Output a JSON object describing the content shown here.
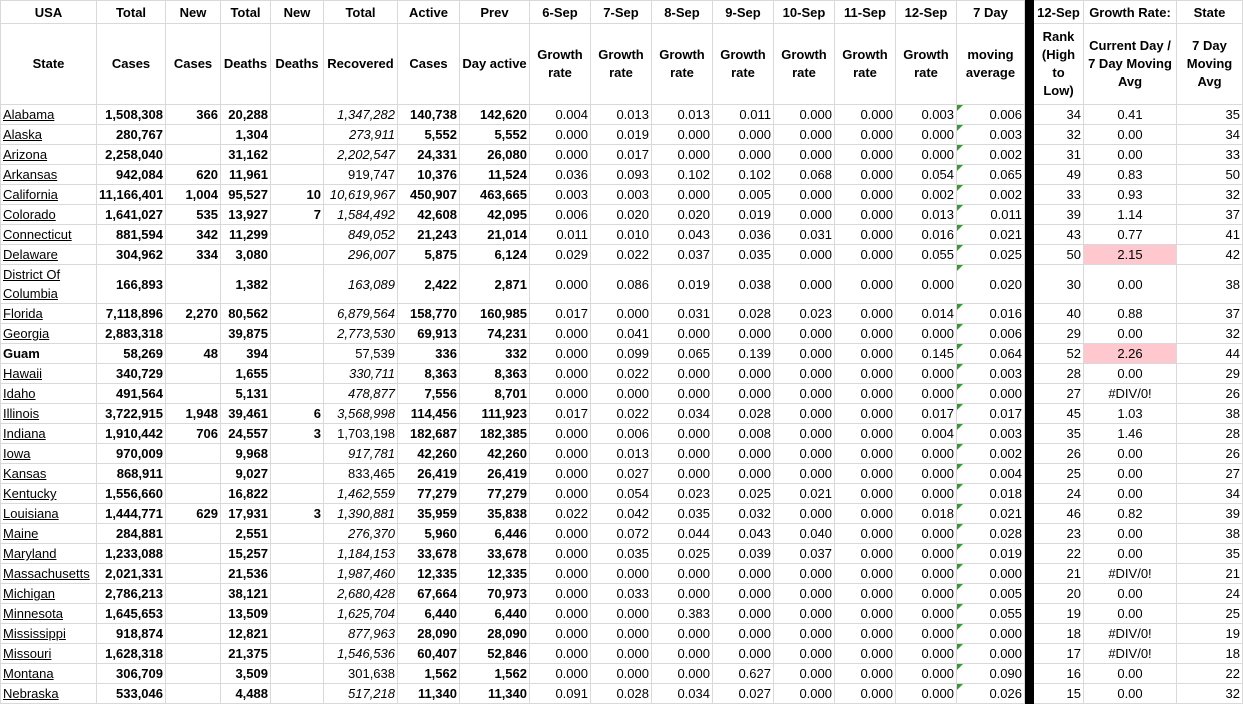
{
  "header": {
    "row1": [
      "USA",
      "Total",
      "New",
      "Total",
      "New",
      "Total",
      "Active",
      "Prev",
      "6-Sep",
      "7-Sep",
      "8-Sep",
      "9-Sep",
      "10-Sep",
      "11-Sep",
      "12-Sep",
      "7 Day",
      "12-Sep",
      "Growth Rate:",
      "State"
    ],
    "row2": [
      "State",
      "Cases",
      "Cases",
      "Deaths",
      "Deaths",
      "Recovered",
      "Cases",
      "Day active",
      "Growth rate",
      "Growth rate",
      "Growth rate",
      "Growth rate",
      "Growth rate",
      "Growth rate",
      "Growth rate",
      "moving average",
      "Rank (High to Low)",
      "Current Day / 7 Day Moving Avg",
      "7 Day Moving Avg"
    ]
  },
  "table": {
    "rows": [
      {
        "cells": [
          "Alabama",
          "1,508,308",
          "366",
          "20,288",
          null,
          "1,347,282",
          "140,738",
          "142,620",
          "0.004",
          "0.013",
          "0.013",
          "0.011",
          "0.000",
          "0.000",
          "0.003",
          "0.006",
          "34",
          "0.41",
          "35"
        ],
        "italic_recovered": true
      },
      {
        "cells": [
          "Alaska",
          "280,767",
          null,
          "1,304",
          null,
          "273,911",
          "5,552",
          "5,552",
          "0.000",
          "0.019",
          "0.000",
          "0.000",
          "0.000",
          "0.000",
          "0.000",
          "0.003",
          "32",
          "0.00",
          "34"
        ],
        "italic_recovered": true
      },
      {
        "cells": [
          "Arizona",
          "2,258,040",
          null,
          "31,162",
          null,
          "2,202,547",
          "24,331",
          "26,080",
          "0.000",
          "0.017",
          "0.000",
          "0.000",
          "0.000",
          "0.000",
          "0.000",
          "0.002",
          "31",
          "0.00",
          "33"
        ],
        "italic_recovered": true
      },
      {
        "cells": [
          "Arkansas",
          "942,084",
          "620",
          "11,961",
          null,
          "919,747",
          "10,376",
          "11,524",
          "0.036",
          "0.093",
          "0.102",
          "0.102",
          "0.068",
          "0.000",
          "0.054",
          "0.065",
          "49",
          "0.83",
          "50"
        ],
        "italic_recovered": false
      },
      {
        "cells": [
          "California",
          "11,166,401",
          "1,004",
          "95,527",
          "10",
          "10,619,967",
          "450,907",
          "463,665",
          "0.003",
          "0.003",
          "0.000",
          "0.005",
          "0.000",
          "0.000",
          "0.002",
          "0.002",
          "33",
          "0.93",
          "32"
        ],
        "italic_recovered": true
      },
      {
        "cells": [
          "Colorado",
          "1,641,027",
          "535",
          "13,927",
          "7",
          "1,584,492",
          "42,608",
          "42,095",
          "0.006",
          "0.020",
          "0.020",
          "0.019",
          "0.000",
          "0.000",
          "0.013",
          "0.011",
          "39",
          "1.14",
          "37"
        ],
        "italic_recovered": true
      },
      {
        "cells": [
          "Connecticut",
          "881,594",
          "342",
          "11,299",
          null,
          "849,052",
          "21,243",
          "21,014",
          "0.011",
          "0.010",
          "0.043",
          "0.036",
          "0.031",
          "0.000",
          "0.016",
          "0.021",
          "43",
          "0.77",
          "41"
        ],
        "italic_recovered": true
      },
      {
        "cells": [
          "Delaware",
          "304,962",
          "334",
          "3,080",
          null,
          "296,007",
          "5,875",
          "6,124",
          "0.029",
          "0.022",
          "0.037",
          "0.035",
          "0.000",
          "0.000",
          "0.055",
          "0.025",
          "50",
          "2.15",
          "42"
        ],
        "italic_recovered": true,
        "ratio_fill": "#ffc7ce"
      },
      {
        "cells": [
          "District Of Columbia",
          "166,893",
          null,
          "1,382",
          null,
          "163,089",
          "2,422",
          "2,871",
          "0.000",
          "0.086",
          "0.019",
          "0.038",
          "0.000",
          "0.000",
          "0.000",
          "0.020",
          "30",
          "0.00",
          "38"
        ],
        "italic_recovered": true
      },
      {
        "cells": [
          "Florida",
          "7,118,896",
          "2,270",
          "80,562",
          null,
          "6,879,564",
          "158,770",
          "160,985",
          "0.017",
          "0.000",
          "0.031",
          "0.028",
          "0.023",
          "0.000",
          "0.014",
          "0.016",
          "40",
          "0.88",
          "37"
        ],
        "italic_recovered": true
      },
      {
        "cells": [
          "Georgia",
          "2,883,318",
          null,
          "39,875",
          null,
          "2,773,530",
          "69,913",
          "74,231",
          "0.000",
          "0.041",
          "0.000",
          "0.000",
          "0.000",
          "0.000",
          "0.000",
          "0.006",
          "29",
          "0.00",
          "32"
        ],
        "italic_recovered": true
      },
      {
        "cells": [
          "Guam",
          "58,269",
          "48",
          "394",
          null,
          "57,539",
          "336",
          "332",
          "0.000",
          "0.099",
          "0.065",
          "0.139",
          "0.000",
          "0.000",
          "0.145",
          "0.064",
          "52",
          "2.26",
          "44"
        ],
        "italic_recovered": false,
        "bold_state": true,
        "ratio_fill": "#ffc7ce"
      },
      {
        "cells": [
          "Hawaii",
          "340,729",
          null,
          "1,655",
          null,
          "330,711",
          "8,363",
          "8,363",
          "0.000",
          "0.022",
          "0.000",
          "0.000",
          "0.000",
          "0.000",
          "0.000",
          "0.003",
          "28",
          "0.00",
          "29"
        ],
        "italic_recovered": true
      },
      {
        "cells": [
          "Idaho",
          "491,564",
          null,
          "5,131",
          null,
          "478,877",
          "7,556",
          "8,701",
          "0.000",
          "0.000",
          "0.000",
          "0.000",
          "0.000",
          "0.000",
          "0.000",
          "0.000",
          "27",
          "#DIV/0!",
          "26"
        ],
        "italic_recovered": true
      },
      {
        "cells": [
          "Illinois",
          "3,722,915",
          "1,948",
          "39,461",
          "6",
          "3,568,998",
          "114,456",
          "111,923",
          "0.017",
          "0.022",
          "0.034",
          "0.028",
          "0.000",
          "0.000",
          "0.017",
          "0.017",
          "45",
          "1.03",
          "38"
        ],
        "italic_recovered": true
      },
      {
        "cells": [
          "Indiana",
          "1,910,442",
          "706",
          "24,557",
          "3",
          "1,703,198",
          "182,687",
          "182,385",
          "0.000",
          "0.006",
          "0.000",
          "0.008",
          "0.000",
          "0.000",
          "0.004",
          "0.003",
          "35",
          "1.46",
          "28"
        ],
        "italic_recovered": false
      },
      {
        "cells": [
          "Iowa",
          "970,009",
          null,
          "9,968",
          null,
          "917,781",
          "42,260",
          "42,260",
          "0.000",
          "0.013",
          "0.000",
          "0.000",
          "0.000",
          "0.000",
          "0.000",
          "0.002",
          "26",
          "0.00",
          "26"
        ],
        "italic_recovered": true
      },
      {
        "cells": [
          "Kansas",
          "868,911",
          null,
          "9,027",
          null,
          "833,465",
          "26,419",
          "26,419",
          "0.000",
          "0.027",
          "0.000",
          "0.000",
          "0.000",
          "0.000",
          "0.000",
          "0.004",
          "25",
          "0.00",
          "27"
        ],
        "italic_recovered": false
      },
      {
        "cells": [
          "Kentucky",
          "1,556,660",
          null,
          "16,822",
          null,
          "1,462,559",
          "77,279",
          "77,279",
          "0.000",
          "0.054",
          "0.023",
          "0.025",
          "0.021",
          "0.000",
          "0.000",
          "0.018",
          "24",
          "0.00",
          "34"
        ],
        "italic_recovered": true
      },
      {
        "cells": [
          "Louisiana",
          "1,444,771",
          "629",
          "17,931",
          "3",
          "1,390,881",
          "35,959",
          "35,838",
          "0.022",
          "0.042",
          "0.035",
          "0.032",
          "0.000",
          "0.000",
          "0.018",
          "0.021",
          "46",
          "0.82",
          "39"
        ],
        "italic_recovered": true
      },
      {
        "cells": [
          "Maine",
          "284,881",
          null,
          "2,551",
          null,
          "276,370",
          "5,960",
          "6,446",
          "0.000",
          "0.072",
          "0.044",
          "0.043",
          "0.040",
          "0.000",
          "0.000",
          "0.028",
          "23",
          "0.00",
          "38"
        ],
        "italic_recovered": true
      },
      {
        "cells": [
          "Maryland",
          "1,233,088",
          null,
          "15,257",
          null,
          "1,184,153",
          "33,678",
          "33,678",
          "0.000",
          "0.035",
          "0.025",
          "0.039",
          "0.037",
          "0.000",
          "0.000",
          "0.019",
          "22",
          "0.00",
          "35"
        ],
        "italic_recovered": true
      },
      {
        "cells": [
          "Massachusetts",
          "2,021,331",
          null,
          "21,536",
          null,
          "1,987,460",
          "12,335",
          "12,335",
          "0.000",
          "0.000",
          "0.000",
          "0.000",
          "0.000",
          "0.000",
          "0.000",
          "0.000",
          "21",
          "#DIV/0!",
          "21"
        ],
        "italic_recovered": true
      },
      {
        "cells": [
          "Michigan",
          "2,786,213",
          null,
          "38,121",
          null,
          "2,680,428",
          "67,664",
          "70,973",
          "0.000",
          "0.033",
          "0.000",
          "0.000",
          "0.000",
          "0.000",
          "0.000",
          "0.005",
          "20",
          "0.00",
          "24"
        ],
        "italic_recovered": true
      },
      {
        "cells": [
          "Minnesota",
          "1,645,653",
          null,
          "13,509",
          null,
          "1,625,704",
          "6,440",
          "6,440",
          "0.000",
          "0.000",
          "0.383",
          "0.000",
          "0.000",
          "0.000",
          "0.000",
          "0.055",
          "19",
          "0.00",
          "25"
        ],
        "italic_recovered": true
      },
      {
        "cells": [
          "Mississippi",
          "918,874",
          null,
          "12,821",
          null,
          "877,963",
          "28,090",
          "28,090",
          "0.000",
          "0.000",
          "0.000",
          "0.000",
          "0.000",
          "0.000",
          "0.000",
          "0.000",
          "18",
          "#DIV/0!",
          "19"
        ],
        "italic_recovered": true
      },
      {
        "cells": [
          "Missouri",
          "1,628,318",
          null,
          "21,375",
          null,
          "1,546,536",
          "60,407",
          "52,846",
          "0.000",
          "0.000",
          "0.000",
          "0.000",
          "0.000",
          "0.000",
          "0.000",
          "0.000",
          "17",
          "#DIV/0!",
          "18"
        ],
        "italic_recovered": true
      },
      {
        "cells": [
          "Montana",
          "306,709",
          null,
          "3,509",
          null,
          "301,638",
          "1,562",
          "1,562",
          "0.000",
          "0.000",
          "0.000",
          "0.627",
          "0.000",
          "0.000",
          "0.000",
          "0.090",
          "16",
          "0.00",
          "22"
        ],
        "italic_recovered": false
      },
      {
        "cells": [
          "Nebraska",
          "533,046",
          null,
          "4,488",
          null,
          "517,218",
          "11,340",
          "11,340",
          "0.091",
          "0.028",
          "0.034",
          "0.027",
          "0.000",
          "0.000",
          "0.000",
          "0.026",
          "15",
          "0.00",
          "32"
        ],
        "italic_recovered": true
      }
    ]
  }
}
